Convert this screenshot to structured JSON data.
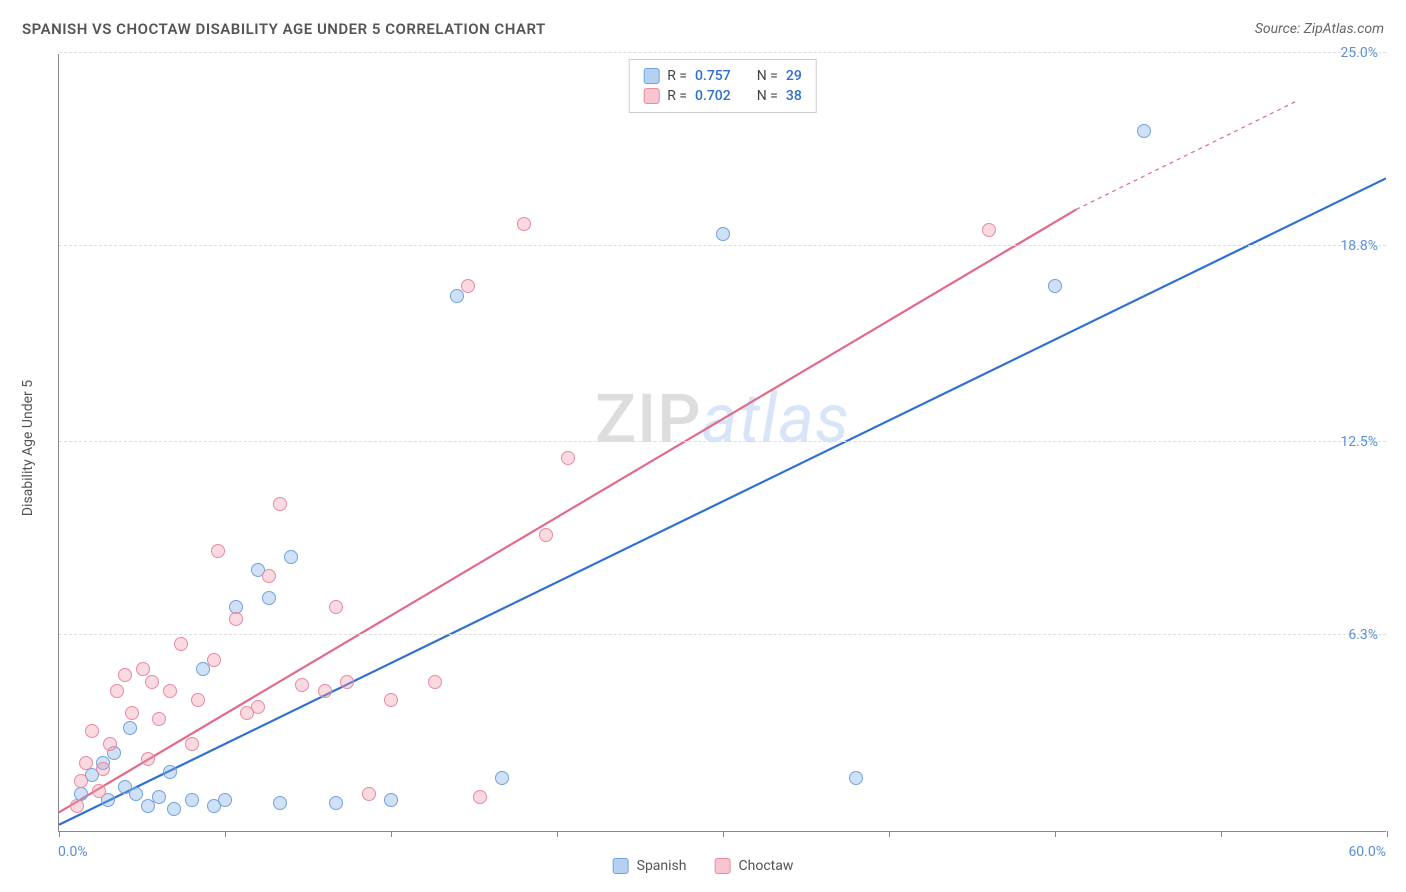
{
  "title": "SPANISH VS CHOCTAW DISABILITY AGE UNDER 5 CORRELATION CHART",
  "source_prefix": "Source: ",
  "source": "ZipAtlas.com",
  "y_axis_title": "Disability Age Under 5",
  "chart": {
    "type": "scatter",
    "background_color": "#ffffff",
    "grid_color": "#dddddd",
    "axis_color": "#888888",
    "xlim": [
      0,
      60
    ],
    "ylim": [
      0,
      25
    ],
    "xticks": [
      0,
      7.5,
      15,
      22.5,
      30,
      37.5,
      45,
      52.5,
      60
    ],
    "yticks": [
      {
        "v": 6.3,
        "label": "6.3%",
        "color": "#5b8fd6"
      },
      {
        "v": 12.5,
        "label": "12.5%",
        "color": "#5b8fd6"
      },
      {
        "v": 18.8,
        "label": "18.8%",
        "color": "#5b8fd6"
      },
      {
        "v": 25.0,
        "label": "25.0%",
        "color": "#5b8fd6"
      }
    ],
    "xaxis_min_label": "0.0%",
    "xaxis_max_label": "60.0%",
    "xaxis_label_color": "#5b8fd6",
    "marker_radius": 7,
    "series": [
      {
        "name": "Spanish",
        "fill": "rgba(120,170,230,0.35)",
        "stroke": "#6fa3e0",
        "trend_color": "#2f6fd0",
        "trend_width": 2.2,
        "r_value": "0.757",
        "n_value": "29",
        "points": [
          [
            1,
            1.2
          ],
          [
            1.5,
            1.8
          ],
          [
            2,
            2.2
          ],
          [
            2.2,
            1.0
          ],
          [
            2.5,
            2.5
          ],
          [
            3,
            1.4
          ],
          [
            3.2,
            3.3
          ],
          [
            3.5,
            1.2
          ],
          [
            4,
            0.8
          ],
          [
            4.5,
            1.1
          ],
          [
            5,
            1.9
          ],
          [
            5.2,
            0.7
          ],
          [
            6,
            1.0
          ],
          [
            6.5,
            5.2
          ],
          [
            7,
            0.8
          ],
          [
            7.5,
            1.0
          ],
          [
            8,
            7.2
          ],
          [
            9,
            8.4
          ],
          [
            9.5,
            7.5
          ],
          [
            10,
            0.9
          ],
          [
            10.5,
            8.8
          ],
          [
            12.5,
            0.9
          ],
          [
            15,
            1.0
          ],
          [
            18,
            17.2
          ],
          [
            20,
            1.7
          ],
          [
            30,
            19.2
          ],
          [
            36,
            1.7
          ],
          [
            45,
            17.5
          ],
          [
            49,
            22.5
          ]
        ],
        "trend": {
          "x1": 0,
          "y1": 0.2,
          "x2": 60,
          "y2": 21.0
        }
      },
      {
        "name": "Choctaw",
        "fill": "rgba(240,150,170,0.35)",
        "stroke": "#e88aa0",
        "trend_color": "#e06a88",
        "trend_width": 2.2,
        "r_value": "0.702",
        "n_value": "38",
        "points": [
          [
            0.8,
            0.8
          ],
          [
            1,
            1.6
          ],
          [
            1.2,
            2.2
          ],
          [
            1.5,
            3.2
          ],
          [
            1.8,
            1.3
          ],
          [
            2,
            2.0
          ],
          [
            2.3,
            2.8
          ],
          [
            2.6,
            4.5
          ],
          [
            3,
            5.0
          ],
          [
            3.3,
            3.8
          ],
          [
            3.8,
            5.2
          ],
          [
            4,
            2.3
          ],
          [
            4.2,
            4.8
          ],
          [
            4.5,
            3.6
          ],
          [
            5,
            4.5
          ],
          [
            5.5,
            6.0
          ],
          [
            6,
            2.8
          ],
          [
            6.3,
            4.2
          ],
          [
            7,
            5.5
          ],
          [
            7.2,
            9.0
          ],
          [
            8,
            6.8
          ],
          [
            8.5,
            3.8
          ],
          [
            9,
            4.0
          ],
          [
            9.5,
            8.2
          ],
          [
            10,
            10.5
          ],
          [
            11,
            4.7
          ],
          [
            12,
            4.5
          ],
          [
            12.5,
            7.2
          ],
          [
            13,
            4.8
          ],
          [
            14,
            1.2
          ],
          [
            15,
            4.2
          ],
          [
            17,
            4.8
          ],
          [
            18.5,
            17.5
          ],
          [
            19,
            1.1
          ],
          [
            21,
            19.5
          ],
          [
            22,
            9.5
          ],
          [
            23,
            12.0
          ],
          [
            42,
            19.3
          ]
        ],
        "trend": {
          "x1": 0,
          "y1": 0.6,
          "x2": 46,
          "y2": 20.0
        },
        "trend_dashed_ext": {
          "x1": 46,
          "y1": 20.0,
          "x2": 56,
          "y2": 23.5
        }
      }
    ],
    "stats_value_color": "#2f6fd0",
    "stats_label_color": "#555555"
  },
  "legend": {
    "items": [
      {
        "label": "Spanish",
        "fill": "rgba(120,170,230,0.55)",
        "stroke": "#6fa3e0"
      },
      {
        "label": "Choctaw",
        "fill": "rgba(240,150,170,0.55)",
        "stroke": "#e88aa0"
      }
    ]
  },
  "watermark": {
    "part1": "ZIP",
    "part2": "atlas"
  }
}
